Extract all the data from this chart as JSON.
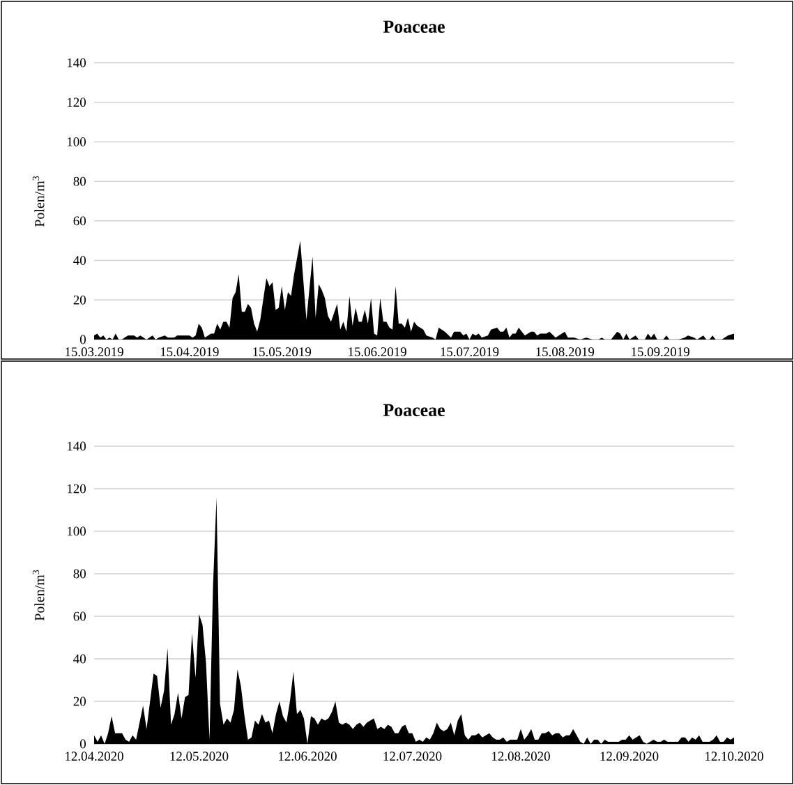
{
  "chart_data": [
    {
      "type": "area",
      "title": "Poaceae",
      "ylabel": "Polen/m$^{3}$",
      "color": "#000000",
      "grid": "y",
      "xlim": [
        "2019-03-15",
        "2019-10-09"
      ],
      "ylim": [
        0,
        140
      ],
      "yticks": [
        0,
        20,
        40,
        60,
        80,
        100,
        120,
        140
      ],
      "xticks": [
        {
          "value": "2019-03-15",
          "label": "15.03.2019"
        },
        {
          "value": "2019-04-15",
          "label": "15.04.2019"
        },
        {
          "value": "2019-05-15",
          "label": "15.05.2019"
        },
        {
          "value": "2019-06-15",
          "label": "15.06.2019"
        },
        {
          "value": "2019-07-15",
          "label": "15.07.2019"
        },
        {
          "value": "2019-08-15",
          "label": "15.08.2019"
        },
        {
          "value": "2019-09-15",
          "label": "15.09.2019"
        }
      ],
      "x": [
        "2019-03-15",
        "2019-03-16",
        "2019-03-17",
        "2019-03-18",
        "2019-03-19",
        "2019-03-20",
        "2019-03-21",
        "2019-03-22",
        "2019-03-23",
        "2019-03-24",
        "2019-03-26",
        "2019-03-28",
        "2019-03-29",
        "2019-03-30",
        "2019-03-31",
        "2019-04-01",
        "2019-04-03",
        "2019-04-04",
        "2019-04-05",
        "2019-04-07",
        "2019-04-08",
        "2019-04-10",
        "2019-04-11",
        "2019-04-12",
        "2019-04-15",
        "2019-04-16",
        "2019-04-17",
        "2019-04-18",
        "2019-04-19",
        "2019-04-20",
        "2019-04-22",
        "2019-04-23",
        "2019-04-24",
        "2019-04-25",
        "2019-04-26",
        "2019-04-27",
        "2019-04-28",
        "2019-04-29",
        "2019-04-30",
        "2019-05-01",
        "2019-05-02",
        "2019-05-03",
        "2019-05-04",
        "2019-05-05",
        "2019-05-06",
        "2019-05-07",
        "2019-05-08",
        "2019-05-10",
        "2019-05-11",
        "2019-05-12",
        "2019-05-13",
        "2019-05-14",
        "2019-05-15",
        "2019-05-16",
        "2019-05-17",
        "2019-05-18",
        "2019-05-19",
        "2019-05-21",
        "2019-05-23",
        "2019-05-25",
        "2019-05-26",
        "2019-05-27",
        "2019-05-28",
        "2019-05-29",
        "2019-05-30",
        "2019-05-31",
        "2019-06-02",
        "2019-06-03",
        "2019-06-04",
        "2019-06-05",
        "2019-06-06",
        "2019-06-07",
        "2019-06-08",
        "2019-06-09",
        "2019-06-10",
        "2019-06-11",
        "2019-06-12",
        "2019-06-13",
        "2019-06-14",
        "2019-06-15",
        "2019-06-16",
        "2019-06-17",
        "2019-06-18",
        "2019-06-19",
        "2019-06-20",
        "2019-06-21",
        "2019-06-22",
        "2019-06-23",
        "2019-06-24",
        "2019-06-25",
        "2019-06-26",
        "2019-06-27",
        "2019-06-28",
        "2019-06-29",
        "2019-06-30",
        "2019-07-01",
        "2019-07-03",
        "2019-07-04",
        "2019-07-05",
        "2019-07-07",
        "2019-07-09",
        "2019-07-10",
        "2019-07-12",
        "2019-07-13",
        "2019-07-14",
        "2019-07-15",
        "2019-07-16",
        "2019-07-17",
        "2019-07-18",
        "2019-07-19",
        "2019-07-21",
        "2019-07-22",
        "2019-07-24",
        "2019-07-25",
        "2019-07-26",
        "2019-07-27",
        "2019-07-28",
        "2019-07-29",
        "2019-07-30",
        "2019-07-31",
        "2019-08-02",
        "2019-08-04",
        "2019-08-05",
        "2019-08-06",
        "2019-08-07",
        "2019-08-09",
        "2019-08-10",
        "2019-08-12",
        "2019-08-13",
        "2019-08-15",
        "2019-08-16",
        "2019-08-18",
        "2019-08-20",
        "2019-08-22",
        "2019-08-24",
        "2019-08-26",
        "2019-08-27",
        "2019-08-28",
        "2019-08-30",
        "2019-09-01",
        "2019-09-02",
        "2019-09-03",
        "2019-09-04",
        "2019-09-05",
        "2019-09-07",
        "2019-09-08",
        "2019-09-10",
        "2019-09-11",
        "2019-09-12",
        "2019-09-13",
        "2019-09-14",
        "2019-09-16",
        "2019-09-17",
        "2019-09-18",
        "2019-09-20",
        "2019-09-21",
        "2019-09-23",
        "2019-09-24",
        "2019-09-26",
        "2019-09-27",
        "2019-09-29",
        "2019-09-30",
        "2019-10-01",
        "2019-10-02",
        "2019-10-03",
        "2019-10-05",
        "2019-10-07",
        "2019-10-09"
      ],
      "values": [
        2,
        3,
        1,
        2,
        0,
        1,
        0,
        3,
        0,
        0,
        2,
        2,
        1,
        2,
        1,
        0,
        2,
        0,
        1,
        2,
        1,
        1,
        2,
        2,
        2,
        1,
        2,
        8,
        6,
        1,
        3,
        3,
        8,
        5,
        9,
        9,
        6,
        21,
        24,
        33,
        14,
        14,
        18,
        16,
        8,
        4,
        10,
        31,
        27,
        29,
        15,
        16,
        27,
        15,
        24,
        22,
        33,
        50,
        10,
        42,
        11,
        28,
        25,
        21,
        12,
        9,
        18,
        5,
        9,
        4,
        22,
        7,
        16,
        9,
        9,
        15,
        8,
        21,
        3,
        2,
        21,
        9,
        9,
        6,
        5,
        27,
        8,
        8,
        6,
        11,
        4,
        9,
        7,
        6,
        5,
        2,
        1,
        0,
        6,
        4,
        1,
        4,
        4,
        2,
        3,
        0,
        3,
        2,
        3,
        1,
        2,
        5,
        6,
        4,
        4,
        6,
        1,
        3,
        3,
        6,
        2,
        4,
        4,
        2,
        3,
        3,
        4,
        1,
        2,
        4,
        1,
        1,
        0,
        1,
        0,
        0,
        1,
        0,
        0,
        4,
        3,
        0,
        3,
        0,
        2,
        0,
        0,
        3,
        1,
        3,
        0,
        0,
        2,
        0,
        0,
        0,
        1,
        2,
        1,
        0,
        2,
        0,
        0,
        2,
        0,
        0,
        2,
        3
      ]
    },
    {
      "type": "area",
      "title": "Poaceae",
      "ylabel": "Polen/m$^{3}$",
      "color": "#000000",
      "grid": "y",
      "xlim": [
        "2020-04-12",
        "2020-10-12"
      ],
      "ylim": [
        0,
        140
      ],
      "yticks": [
        0,
        20,
        40,
        60,
        80,
        100,
        120,
        140
      ],
      "xticks": [
        {
          "value": "2020-04-12",
          "label": "12.04.2020"
        },
        {
          "value": "2020-05-12",
          "label": "12.05.2020"
        },
        {
          "value": "2020-06-12",
          "label": "12.06.2020"
        },
        {
          "value": "2020-07-12",
          "label": "12.07.2020"
        },
        {
          "value": "2020-08-12",
          "label": "12.08.2020"
        },
        {
          "value": "2020-09-12",
          "label": "12.09.2020"
        },
        {
          "value": "2020-10-12",
          "label": "12.10.2020"
        }
      ],
      "x": [
        "2020-04-12",
        "2020-04-13",
        "2020-04-14",
        "2020-04-15",
        "2020-04-16",
        "2020-04-17",
        "2020-04-18",
        "2020-04-19",
        "2020-04-20",
        "2020-04-21",
        "2020-04-22",
        "2020-04-23",
        "2020-04-24",
        "2020-04-25",
        "2020-04-26",
        "2020-04-27",
        "2020-04-28",
        "2020-04-29",
        "2020-04-30",
        "2020-05-01",
        "2020-05-02",
        "2020-05-03",
        "2020-05-04",
        "2020-05-05",
        "2020-05-06",
        "2020-05-07",
        "2020-05-08",
        "2020-05-09",
        "2020-05-10",
        "2020-05-11",
        "2020-05-12",
        "2020-05-13",
        "2020-05-14",
        "2020-05-15",
        "2020-05-16",
        "2020-05-17",
        "2020-05-18",
        "2020-05-19",
        "2020-05-20",
        "2020-05-21",
        "2020-05-22",
        "2020-05-23",
        "2020-05-24",
        "2020-05-25",
        "2020-05-26",
        "2020-05-27",
        "2020-05-28",
        "2020-05-29",
        "2020-05-30",
        "2020-05-31",
        "2020-06-01",
        "2020-06-02",
        "2020-06-03",
        "2020-06-04",
        "2020-06-05",
        "2020-06-06",
        "2020-06-07",
        "2020-06-08",
        "2020-06-09",
        "2020-06-10",
        "2020-06-11",
        "2020-06-12",
        "2020-06-13",
        "2020-06-14",
        "2020-06-15",
        "2020-06-16",
        "2020-06-17",
        "2020-06-18",
        "2020-06-19",
        "2020-06-20",
        "2020-06-21",
        "2020-06-22",
        "2020-06-23",
        "2020-06-24",
        "2020-06-25",
        "2020-06-26",
        "2020-06-27",
        "2020-06-28",
        "2020-06-29",
        "2020-06-30",
        "2020-07-01",
        "2020-07-02",
        "2020-07-03",
        "2020-07-04",
        "2020-07-05",
        "2020-07-06",
        "2020-07-07",
        "2020-07-08",
        "2020-07-09",
        "2020-07-10",
        "2020-07-11",
        "2020-07-12",
        "2020-07-13",
        "2020-07-14",
        "2020-07-15",
        "2020-07-16",
        "2020-07-17",
        "2020-07-18",
        "2020-07-19",
        "2020-07-20",
        "2020-07-21",
        "2020-07-22",
        "2020-07-23",
        "2020-07-24",
        "2020-07-25",
        "2020-07-26",
        "2020-07-27",
        "2020-07-28",
        "2020-07-29",
        "2020-07-30",
        "2020-07-31",
        "2020-08-01",
        "2020-08-02",
        "2020-08-03",
        "2020-08-04",
        "2020-08-05",
        "2020-08-06",
        "2020-08-07",
        "2020-08-08",
        "2020-08-09",
        "2020-08-10",
        "2020-08-11",
        "2020-08-12",
        "2020-08-13",
        "2020-08-14",
        "2020-08-15",
        "2020-08-16",
        "2020-08-17",
        "2020-08-18",
        "2020-08-19",
        "2020-08-20",
        "2020-08-21",
        "2020-08-22",
        "2020-08-23",
        "2020-08-24",
        "2020-08-25",
        "2020-08-26",
        "2020-08-27",
        "2020-08-28",
        "2020-08-29",
        "2020-08-30",
        "2020-08-31",
        "2020-09-01",
        "2020-09-02",
        "2020-09-03",
        "2020-09-04",
        "2020-09-05",
        "2020-09-06",
        "2020-09-07",
        "2020-09-08",
        "2020-09-09",
        "2020-09-10",
        "2020-09-11",
        "2020-09-12",
        "2020-09-13",
        "2020-09-14",
        "2020-09-15",
        "2020-09-16",
        "2020-09-17",
        "2020-09-18",
        "2020-09-19",
        "2020-09-20",
        "2020-09-21",
        "2020-09-22",
        "2020-09-23",
        "2020-09-24",
        "2020-09-25",
        "2020-09-26",
        "2020-09-27",
        "2020-09-28",
        "2020-09-29",
        "2020-09-30",
        "2020-10-01",
        "2020-10-02",
        "2020-10-03",
        "2020-10-04",
        "2020-10-05",
        "2020-10-06",
        "2020-10-07",
        "2020-10-08",
        "2020-10-09",
        "2020-10-10",
        "2020-10-11",
        "2020-10-12"
      ],
      "values": [
        4,
        1,
        4,
        0,
        5,
        13,
        5,
        5,
        5,
        2,
        1,
        4,
        2,
        10,
        18,
        7,
        20,
        33,
        32,
        17,
        25,
        45,
        9,
        14,
        24,
        12,
        22,
        23,
        52,
        31,
        61,
        56,
        38,
        2,
        74,
        116,
        19,
        9,
        12,
        10,
        16,
        35,
        27,
        13,
        2,
        3,
        11,
        9,
        14,
        10,
        11,
        5,
        14,
        20,
        13,
        10,
        20,
        34,
        14,
        16,
        12,
        0,
        13,
        12,
        9,
        12,
        11,
        12,
        15,
        20,
        10,
        9,
        10,
        9,
        7,
        9,
        10,
        8,
        10,
        11,
        12,
        7,
        8,
        7,
        9,
        8,
        5,
        5,
        8,
        9,
        5,
        5,
        1,
        2,
        1,
        3,
        2,
        5,
        10,
        7,
        6,
        7,
        10,
        4,
        11,
        14,
        4,
        2,
        4,
        4,
        5,
        3,
        4,
        5,
        3,
        2,
        2,
        3,
        1,
        2,
        2,
        2,
        7,
        2,
        4,
        7,
        2,
        2,
        5,
        5,
        6,
        4,
        5,
        5,
        3,
        4,
        4,
        7,
        4,
        1,
        0,
        3,
        0,
        2,
        2,
        0,
        2,
        1,
        1,
        1,
        1,
        2,
        2,
        4,
        2,
        3,
        4,
        1,
        0,
        1,
        2,
        1,
        1,
        2,
        1,
        1,
        1,
        1,
        3,
        3,
        1,
        3,
        2,
        4,
        1,
        1,
        1,
        2,
        4,
        1,
        1,
        3,
        2,
        3
      ]
    }
  ]
}
